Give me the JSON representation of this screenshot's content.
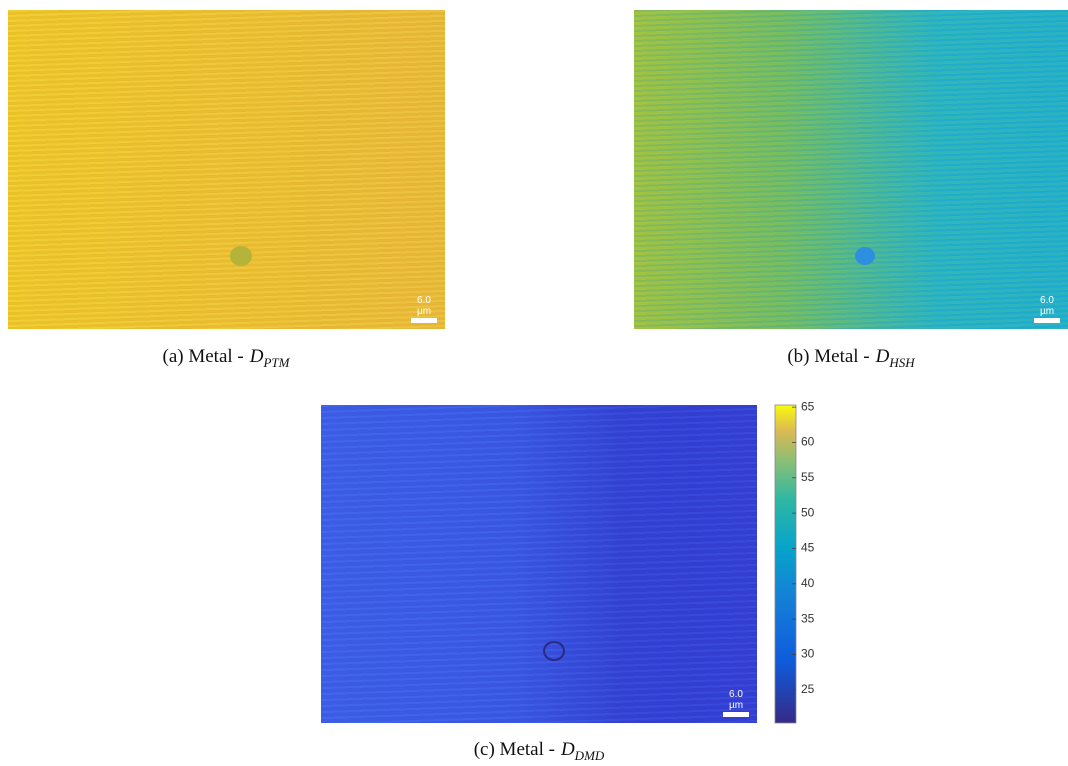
{
  "panels": [
    {
      "caption": "(a) Metal -",
      "symbol": "D",
      "subscript": "PTM",
      "scale_label": "6.0 µm"
    },
    {
      "caption": "(b) Metal -",
      "symbol": "D",
      "subscript": "HSH",
      "scale_label": "6.0 µm"
    },
    {
      "caption": "(c) Metal -",
      "symbol": "D",
      "subscript": "DMD",
      "scale_label": "6.0 µm"
    }
  ],
  "colorbar": {
    "lim": [
      20.3,
      65.3
    ],
    "ticks": [
      25,
      30,
      35,
      40,
      45,
      50,
      55,
      60,
      65
    ]
  }
}
